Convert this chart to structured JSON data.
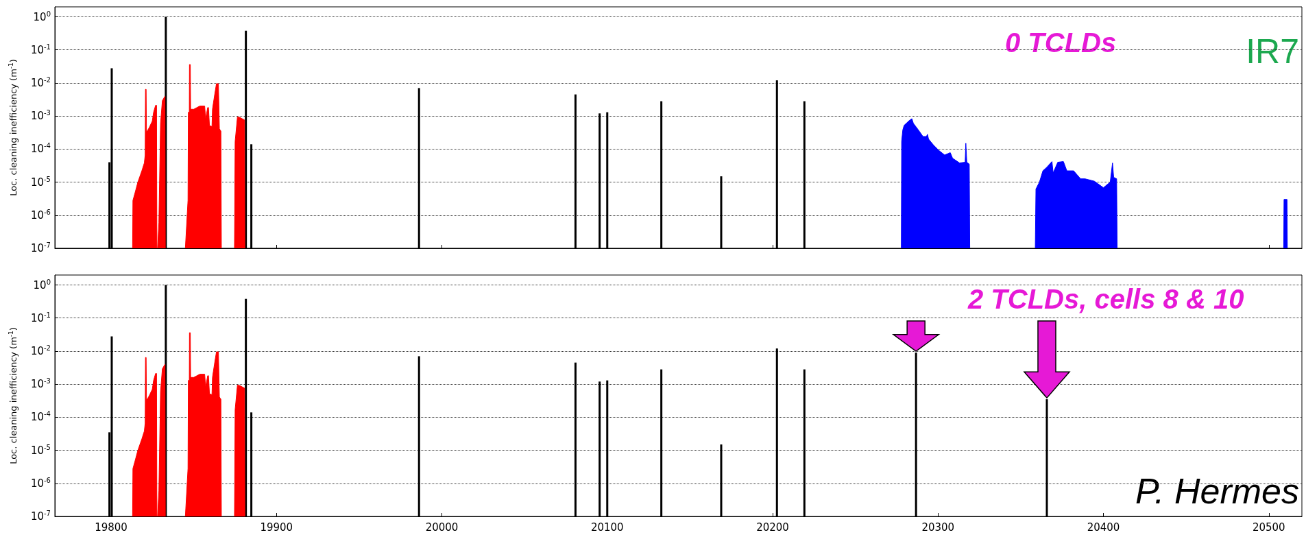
{
  "chart_data": [
    {
      "type": "bar",
      "ylabel": "Loc. cleaning inefficiency (m$^{-1}$)",
      "log": "y",
      "grid": "y",
      "tick_labels": "y",
      "xlim": [
        19766,
        20520
      ],
      "xticks": [
        19800,
        19900,
        20000,
        20100,
        20200,
        20300,
        20400,
        20500
      ],
      "ylim": [
        1e-07,
        2
      ],
      "yticks": [
        {
          "value": 1e-07,
          "label": "10$^{-7}$"
        },
        {
          "value": 1e-06,
          "label": "10$^{-6}$"
        },
        {
          "value": 1e-05,
          "label": "10$^{-5}$"
        },
        {
          "value": 0.0001,
          "label": "10$^{-4}$"
        },
        {
          "value": 0.001,
          "label": "10$^{-3}$"
        },
        {
          "value": 0.01,
          "label": "10$^{-2}$"
        },
        {
          "value": 0.1,
          "label": "10$^{-1}$"
        },
        {
          "value": 1,
          "label": "10$^{0}$"
        }
      ],
      "annotations": [
        "0 TCLDs",
        "IR7"
      ],
      "series": [
        {
          "type": "area",
          "color": "#ff0000",
          "x": [
            19813.0,
            19813.2,
            19814.4,
            19816.2,
            19818.6,
            19820.1,
            19820.6,
            19820.8,
            19821.2,
            19821.4,
            19823.0,
            19824.9,
            19825.7,
            19826.9,
            19827.5,
            19827.7,
            19828.0,
            19828.1,
            19828.9,
            19829.9,
            19831.0,
            19832.6,
            19832.8,
            19838.0,
            19844.9,
            19846.5,
            19846.7,
            19847.3,
            19847.4,
            19847.9,
            19848.1,
            19850.0,
            19853.6,
            19856.6,
            19857.2,
            19858.4,
            19858.9,
            19859.5,
            19861.0,
            19861.3,
            19862.5,
            19863.7,
            19864.9,
            19865.5,
            19866.4,
            19866.7,
            19870.0,
            19874.6,
            19875.0,
            19876.4,
            19877.9,
            19880.7,
            19880.9
          ],
          "values": [
            1e-07,
            2.8e-06,
            4.6e-06,
            1e-05,
            2.2e-05,
            3.8e-05,
            6.6e-05,
            0.0064,
            0.0064,
            0.00032,
            0.00044,
            0.0007,
            0.0013,
            0.0021,
            0.0021,
            1e-07,
            null,
            1e-07,
            5.9e-07,
            0.0006,
            0.0029,
            0.004,
            1e-07,
            null,
            1e-07,
            2.8e-06,
            0.0013,
            0.0013,
            0.036,
            0.036,
            0.0016,
            0.0016,
            0.002,
            0.002,
            0.00083,
            0.0018,
            0.0018,
            0.00051,
            0.00048,
            0.0016,
            0.004,
            0.0095,
            0.0095,
            0.00041,
            0.00035,
            1e-07,
            null,
            1e-07,
            0.00017,
            0.00094,
            0.0009,
            0.00076,
            1e-07
          ]
        },
        {
          "type": "area",
          "color": "#0000ff",
          "x": [
            20277.8,
            20278.0,
            20278.7,
            20279.5,
            20280.8,
            20282.6,
            20284.2,
            20285.1,
            20288.1,
            20290.9,
            20293.0,
            20293.6,
            20294.3,
            20297.1,
            20300.5,
            20304.0,
            20307.4,
            20308.8,
            20313.0,
            20316.4,
            20316.8,
            20317.4,
            20318.9,
            20319.2,
            20340.0,
            20358.8,
            20359.2,
            20361.3,
            20363.4,
            20365.7,
            20368.9,
            20369.6,
            20372.4,
            20375.8,
            20377.9,
            20382.0,
            20386.2,
            20388.9,
            20394.5,
            20400.0,
            20404.1,
            20405.5,
            20406.2,
            20408.0,
            20408.3,
            20450.0,
            20509.0,
            20509.2,
            20511.0,
            20511.2
          ],
          "values": [
            1e-07,
            0.00017,
            0.00038,
            0.00052,
            0.0006,
            0.00073,
            0.00083,
            0.0006,
            0.00038,
            0.00024,
            0.00024,
            0.00028,
            0.0002,
            0.000135,
            9.1e-05,
            6.6e-05,
            7.8e-05,
            5.3e-05,
            3.8e-05,
            4e-05,
            0.00015,
            4e-05,
            3.5e-05,
            1e-07,
            null,
            1e-07,
            6.2e-06,
            1e-05,
            2.2e-05,
            2.8e-05,
            4.2e-05,
            1.9e-05,
            4e-05,
            4.2e-05,
            2.2e-05,
            2.2e-05,
            1.26e-05,
            1.26e-05,
            1.07e-05,
            6.8e-06,
            1e-05,
            3.8e-05,
            1.4e-05,
            1.26e-05,
            1e-07,
            null,
            1e-07,
            3e-06,
            3e-06,
            1e-07
          ]
        },
        {
          "color": "#000000",
          "x": [
            19799,
            19800.4,
            19833.1,
            19881.5,
            19884.8,
            19986.2,
            20080.8,
            20095.4,
            20100,
            20132.7,
            20168.9,
            20202.6,
            20219.2
          ],
          "values": [
            4e-05,
            0.028,
            1,
            0.38,
            0.00014,
            0.007,
            0.0045,
            0.0012,
            0.0013,
            0.0028,
            1.5e-05,
            0.012,
            0.0028
          ]
        }
      ]
    },
    {
      "type": "bar",
      "ylabel": "Loc. cleaning inefficiency (m$^{-1}$)",
      "log": "y",
      "grid": "y",
      "xlim": [
        19766,
        20520
      ],
      "xticks": [
        19800,
        19900,
        20000,
        20100,
        20200,
        20300,
        20400,
        20500
      ],
      "ylim": [
        1e-07,
        2
      ],
      "yticks": [
        {
          "value": 1e-07,
          "label": "10$^{-7}$"
        },
        {
          "value": 1e-06,
          "label": "10$^{-6}$"
        },
        {
          "value": 1e-05,
          "label": "10$^{-5}$"
        },
        {
          "value": 0.0001,
          "label": "10$^{-4}$"
        },
        {
          "value": 0.001,
          "label": "10$^{-3}$"
        },
        {
          "value": 0.01,
          "label": "10$^{-2}$"
        },
        {
          "value": 0.1,
          "label": "10$^{-1}$"
        },
        {
          "value": 1,
          "label": "10$^{0}$"
        }
      ],
      "annotations": [
        "2 TCLDs, cells 8 & 10",
        "P. Hermes"
      ],
      "series": [
        {
          "type": "area",
          "color": "#ff0000",
          "x": [
            19813.0,
            19813.2,
            19814.4,
            19816.2,
            19818.6,
            19820.1,
            19820.6,
            19820.8,
            19821.2,
            19821.4,
            19823.0,
            19824.9,
            19825.7,
            19826.9,
            19827.5,
            19827.7,
            19828.0,
            19828.1,
            19828.9,
            19829.9,
            19831.0,
            19832.6,
            19832.8,
            19838.0,
            19844.9,
            19846.5,
            19846.7,
            19847.3,
            19847.4,
            19847.9,
            19848.1,
            19850.0,
            19853.6,
            19856.6,
            19857.2,
            19858.4,
            19858.9,
            19859.5,
            19861.0,
            19861.3,
            19862.5,
            19863.7,
            19864.9,
            19865.5,
            19866.4,
            19866.7,
            19870.0,
            19874.6,
            19875.0,
            19876.4,
            19877.9,
            19880.7,
            19880.9
          ],
          "values": [
            1e-07,
            2.8e-06,
            4.6e-06,
            1e-05,
            2.2e-05,
            3.8e-05,
            6.6e-05,
            0.0064,
            0.0064,
            0.00032,
            0.00044,
            0.0007,
            0.0013,
            0.0021,
            0.0021,
            1e-07,
            null,
            1e-07,
            5.9e-07,
            0.0006,
            0.0029,
            0.004,
            1e-07,
            null,
            1e-07,
            2.8e-06,
            0.0013,
            0.0013,
            0.036,
            0.036,
            0.0016,
            0.0016,
            0.002,
            0.002,
            0.00083,
            0.0018,
            0.0018,
            0.00051,
            0.00048,
            0.0016,
            0.004,
            0.0095,
            0.0095,
            0.00041,
            0.00035,
            1e-07,
            null,
            1e-07,
            0.00017,
            0.00094,
            0.0009,
            0.00076,
            1e-07
          ]
        },
        {
          "color": "#000000",
          "x": [
            19799,
            19800.4,
            19833.1,
            19881.5,
            19884.8,
            19986.2,
            20080.8,
            20095.4,
            20100,
            20132.7,
            20168.9,
            20202.6,
            20219.2,
            20286.7,
            20365.8
          ],
          "values": [
            3.5e-05,
            0.028,
            1,
            0.38,
            0.00014,
            0.007,
            0.0045,
            0.0012,
            0.0013,
            0.0028,
            1.5e-05,
            0.012,
            0.0028,
            0.009,
            0.00035
          ]
        }
      ]
    }
  ]
}
